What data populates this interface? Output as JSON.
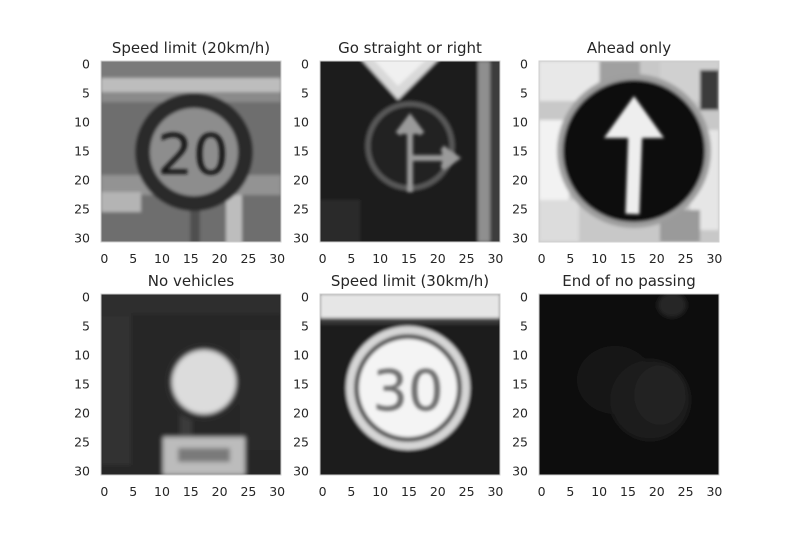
{
  "figure": {
    "panels": [
      {
        "title": "Speed limit (20km/h)",
        "xticks": [
          "0",
          "5",
          "10",
          "15",
          "20",
          "25",
          "30"
        ],
        "yticks": [
          "0",
          "5",
          "10",
          "15",
          "20",
          "25",
          "30"
        ],
        "sign_text": "20"
      },
      {
        "title": "Go straight or right",
        "xticks": [
          "0",
          "5",
          "10",
          "15",
          "20",
          "25",
          "30"
        ],
        "yticks": [
          "0",
          "5",
          "10",
          "15",
          "20",
          "25",
          "30"
        ],
        "sign_text": ""
      },
      {
        "title": "Ahead only",
        "xticks": [
          "0",
          "5",
          "10",
          "15",
          "20",
          "25",
          "30"
        ],
        "yticks": [
          "0",
          "5",
          "10",
          "15",
          "20",
          "25",
          "30"
        ],
        "sign_text": ""
      },
      {
        "title": "No vehicles",
        "xticks": [
          "0",
          "5",
          "10",
          "15",
          "20",
          "25",
          "30"
        ],
        "yticks": [
          "0",
          "5",
          "10",
          "15",
          "20",
          "25",
          "30"
        ],
        "sign_text": ""
      },
      {
        "title": "Speed limit (30km/h)",
        "xticks": [
          "0",
          "5",
          "10",
          "15",
          "20",
          "25",
          "30"
        ],
        "yticks": [
          "0",
          "5",
          "10",
          "15",
          "20",
          "25",
          "30"
        ],
        "sign_text": "30"
      },
      {
        "title": "End of no passing",
        "xticks": [
          "0",
          "5",
          "10",
          "15",
          "20",
          "25",
          "30"
        ],
        "yticks": [
          "0",
          "5",
          "10",
          "15",
          "20",
          "25",
          "30"
        ],
        "sign_text": ""
      }
    ],
    "colormap": "grayscale",
    "grid": false,
    "tick_values": [
      0,
      5,
      10,
      15,
      20,
      25,
      30
    ],
    "image_extent": [
      0,
      31
    ]
  }
}
